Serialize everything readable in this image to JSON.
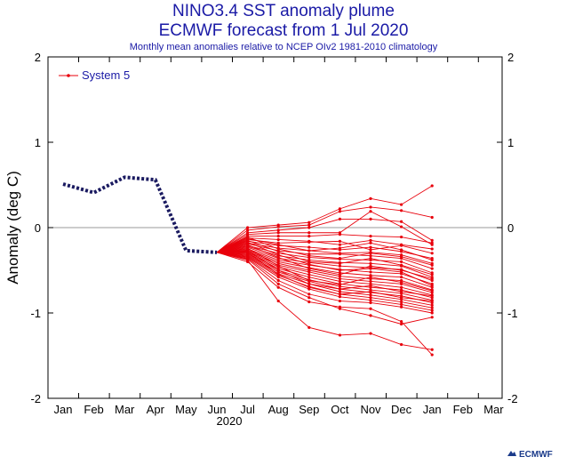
{
  "header": {
    "title": "NINO3.4 SST anomaly plume",
    "subtitle": "ECMWF forecast from 1 Jul 2020",
    "note": "Monthly mean anomalies relative to NCEP OIv2 1981-2010 climatology"
  },
  "logo": {
    "text": "ECMWF"
  },
  "chart_data": {
    "type": "line",
    "ylabel": "Anomaly (deg C)",
    "xlabel": "",
    "year_label": "2020",
    "ylim": [
      -2,
      2
    ],
    "yticks": [
      "-2",
      "-1",
      "0",
      "1",
      "2"
    ],
    "months": [
      "Jan",
      "Feb",
      "Mar",
      "Apr",
      "May",
      "Jun",
      "Jul",
      "Aug",
      "Sep",
      "Oct",
      "Nov",
      "Dec",
      "Jan",
      "Feb",
      "Mar"
    ],
    "legend": {
      "label": "System 5",
      "placement": "top-left"
    },
    "colors": {
      "observed": "#1a1a60",
      "forecast": "#e8000b",
      "axis": "#000000",
      "zero_line": "#9a9a9a",
      "title": "#1a1aa6"
    },
    "observed": {
      "x": [
        0,
        1,
        2,
        3,
        4,
        5
      ],
      "y": [
        0.51,
        0.41,
        0.59,
        0.56,
        -0.27,
        -0.29
      ]
    },
    "forecast": {
      "name": "System 5",
      "origin": {
        "x": 5,
        "y": -0.29
      },
      "x": [
        6,
        7,
        8,
        9,
        10,
        11,
        12
      ],
      "members": [
        [
          0.0,
          0.03,
          0.06,
          0.22,
          0.34,
          0.27,
          0.49
        ],
        [
          -0.03,
          0.01,
          0.03,
          0.19,
          0.24,
          0.2,
          0.12
        ],
        [
          -0.06,
          -0.03,
          0.0,
          0.1,
          0.1,
          0.07,
          -0.15
        ],
        [
          -0.08,
          -0.06,
          -0.06,
          -0.06,
          0.19,
          0.01,
          -0.2
        ],
        [
          -0.1,
          -0.1,
          -0.1,
          -0.08,
          -0.1,
          -0.11,
          -0.18
        ],
        [
          -0.12,
          -0.14,
          -0.16,
          -0.2,
          -0.15,
          -0.2,
          -0.25
        ],
        [
          -0.14,
          -0.18,
          -0.17,
          -0.16,
          -0.26,
          -0.21,
          -0.3
        ],
        [
          -0.16,
          -0.21,
          -0.23,
          -0.26,
          -0.23,
          -0.28,
          -0.36
        ],
        [
          -0.18,
          -0.24,
          -0.27,
          -0.3,
          -0.29,
          -0.32,
          -0.42
        ],
        [
          -0.19,
          -0.27,
          -0.31,
          -0.31,
          -0.33,
          -0.36,
          -0.48
        ],
        [
          -0.21,
          -0.3,
          -0.35,
          -0.37,
          -0.38,
          -0.4,
          -0.53
        ],
        [
          -0.22,
          -0.33,
          -0.38,
          -0.41,
          -0.42,
          -0.45,
          -0.58
        ],
        [
          -0.23,
          -0.36,
          -0.41,
          -0.45,
          -0.47,
          -0.49,
          -0.62
        ],
        [
          -0.25,
          -0.38,
          -0.44,
          -0.49,
          -0.52,
          -0.54,
          -0.66
        ],
        [
          -0.26,
          -0.4,
          -0.47,
          -0.53,
          -0.56,
          -0.58,
          -0.7
        ],
        [
          -0.27,
          -0.42,
          -0.5,
          -0.57,
          -0.6,
          -0.62,
          -0.73
        ],
        [
          -0.28,
          -0.44,
          -0.52,
          -0.6,
          -0.63,
          -0.66,
          -0.76
        ],
        [
          -0.29,
          -0.46,
          -0.55,
          -0.63,
          -0.66,
          -0.7,
          -0.79
        ],
        [
          -0.3,
          -0.48,
          -0.58,
          -0.66,
          -0.7,
          -0.73,
          -0.82
        ],
        [
          -0.31,
          -0.5,
          -0.61,
          -0.69,
          -0.73,
          -0.77,
          -0.85
        ],
        [
          -0.32,
          -0.52,
          -0.63,
          -0.72,
          -0.76,
          -0.8,
          -0.88
        ],
        [
          -0.33,
          -0.54,
          -0.66,
          -0.75,
          -0.79,
          -0.84,
          -0.91
        ],
        [
          -0.34,
          -0.56,
          -0.69,
          -0.78,
          -0.82,
          -0.87,
          -0.94
        ],
        [
          -0.35,
          -0.58,
          -0.72,
          -0.81,
          -0.85,
          -0.9,
          -0.97
        ],
        [
          -0.36,
          -0.62,
          -0.78,
          -0.86,
          -0.88,
          -0.93,
          -1.0
        ],
        [
          -0.37,
          -0.66,
          -0.82,
          -0.95,
          -1.03,
          -1.13,
          -1.05
        ],
        [
          -0.38,
          -0.86,
          -1.17,
          -1.26,
          -1.24,
          -1.37,
          -1.43
        ],
        [
          -0.4,
          -0.7,
          -0.87,
          -0.93,
          -0.95,
          -1.1,
          -1.49
        ],
        [
          -0.2,
          -0.35,
          -0.48,
          -0.55,
          -0.45,
          -0.5,
          -0.6
        ],
        [
          -0.15,
          -0.28,
          -0.4,
          -0.42,
          -0.36,
          -0.44,
          -0.55
        ],
        [
          -0.24,
          -0.45,
          -0.62,
          -0.67,
          -0.58,
          -0.64,
          -0.74
        ],
        [
          -0.17,
          -0.32,
          -0.43,
          -0.5,
          -0.48,
          -0.52,
          -0.68
        ],
        [
          -0.27,
          -0.5,
          -0.66,
          -0.72,
          -0.68,
          -0.75,
          -0.8
        ],
        [
          -0.11,
          -0.25,
          -0.33,
          -0.36,
          -0.3,
          -0.34,
          -0.44
        ],
        [
          -0.29,
          -0.55,
          -0.7,
          -0.78,
          -0.75,
          -0.82,
          -0.86
        ],
        [
          -0.13,
          -0.2,
          -0.27,
          -0.24,
          -0.18,
          -0.26,
          -0.38
        ]
      ]
    }
  }
}
